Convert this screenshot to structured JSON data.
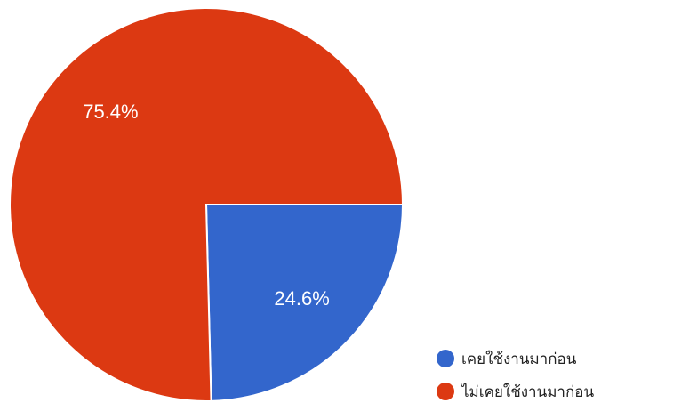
{
  "chart_data": {
    "type": "pie",
    "start_angle_deg": 90,
    "direction": "clockwise",
    "slices": [
      {
        "name": "เคยใช้งานมาก่อน",
        "value": 24.6,
        "label": "24.6%",
        "color": "#3366CC"
      },
      {
        "name": "ไม่เคยใช้งานมาก่อน",
        "value": 75.4,
        "label": "75.4%",
        "color": "#DC3912"
      }
    ],
    "legend_position": "bottom-right"
  }
}
